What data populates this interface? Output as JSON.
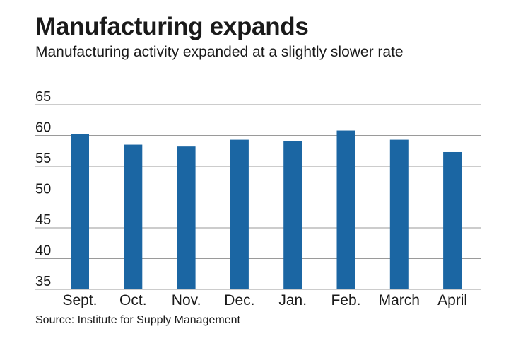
{
  "chart_data": {
    "type": "bar",
    "title": "Manufacturing expands",
    "subtitle": "Manufacturing activity expanded at a slightly slower rate",
    "categories": [
      "Sept.",
      "Oct.",
      "Nov.",
      "Dec.",
      "Jan.",
      "Feb.",
      "March",
      "April"
    ],
    "values": [
      60.2,
      58.5,
      58.2,
      59.3,
      59.1,
      60.8,
      59.3,
      57.3
    ],
    "yticks": [
      35,
      40,
      45,
      50,
      55,
      60,
      65
    ],
    "ylim": [
      35,
      65
    ],
    "xlabel": "",
    "ylabel": "",
    "grid": true,
    "bar_color": "#1b66a3",
    "source": "Source: Institute for Supply Management"
  }
}
